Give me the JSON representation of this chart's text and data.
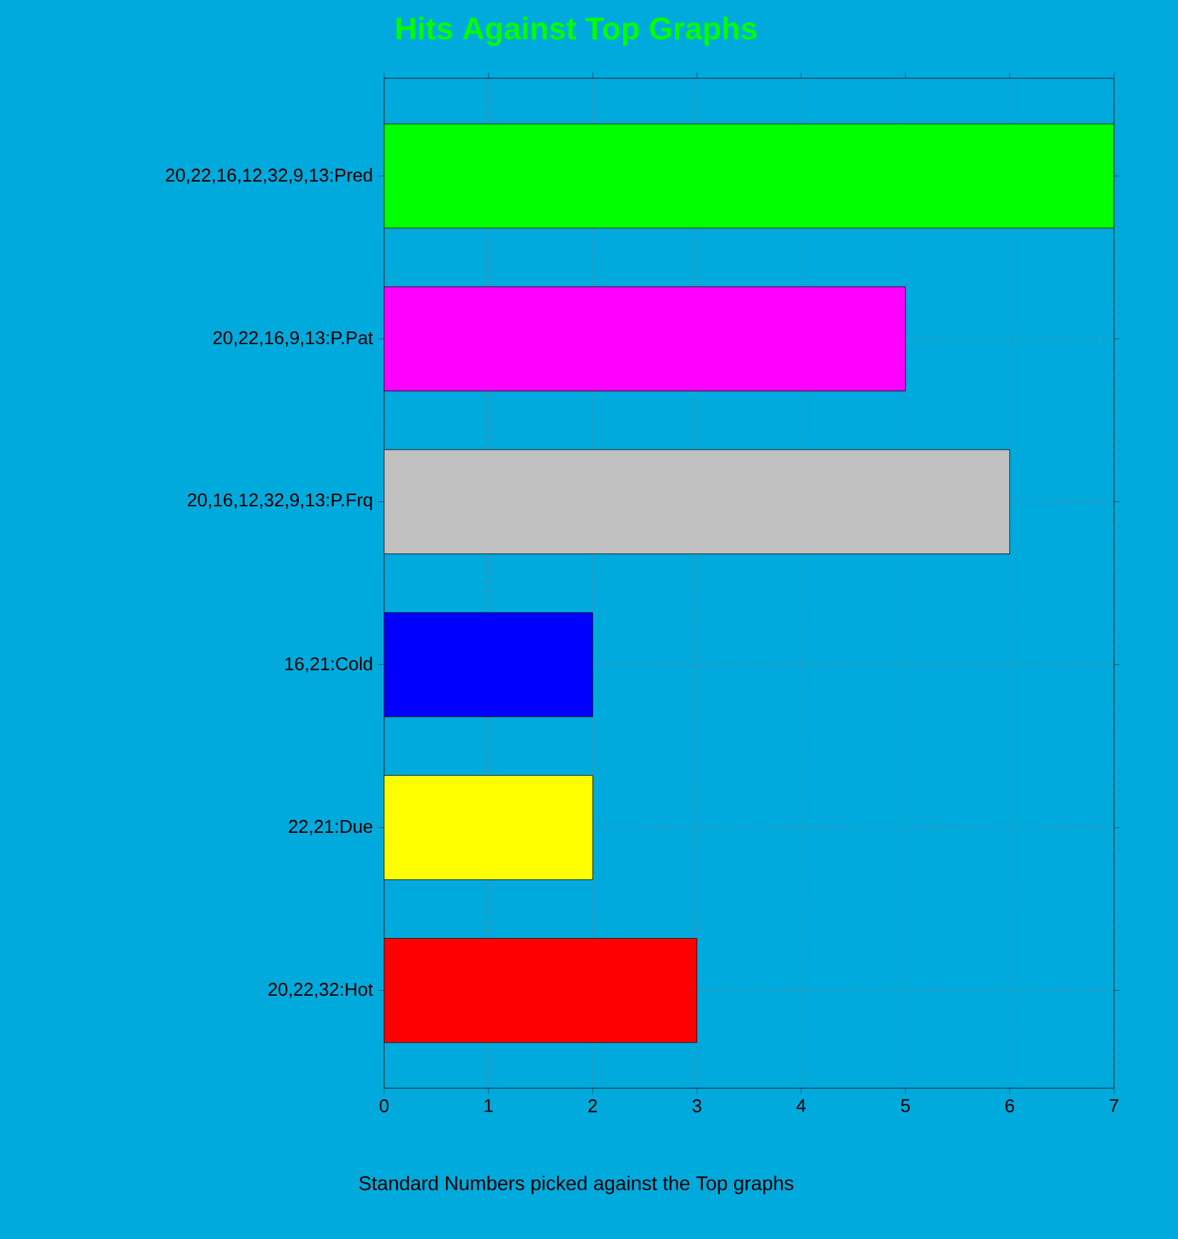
{
  "chart_data": {
    "type": "bar",
    "orientation": "horizontal",
    "title": "Hits Against Top Graphs",
    "xlabel": "Standard Numbers picked against the Top graphs",
    "categories": [
      "20,22,16,12,32,9,13:Pred",
      "20,22,16,9,13:P.Pat",
      "20,16,12,32,9,13:P.Frq",
      "16,21:Cold",
      "22,21:Due",
      "20,22,32:Hot"
    ],
    "values": [
      7,
      5,
      6,
      2,
      2,
      3
    ],
    "colors": [
      "#00ff00",
      "#ff00ff",
      "#c0c0c0",
      "#0000ff",
      "#ffff00",
      "#ff0000"
    ],
    "xlim": [
      0,
      7
    ],
    "xticks": [
      0,
      1,
      2,
      3,
      4,
      5,
      6,
      7
    ],
    "grid": true
  }
}
